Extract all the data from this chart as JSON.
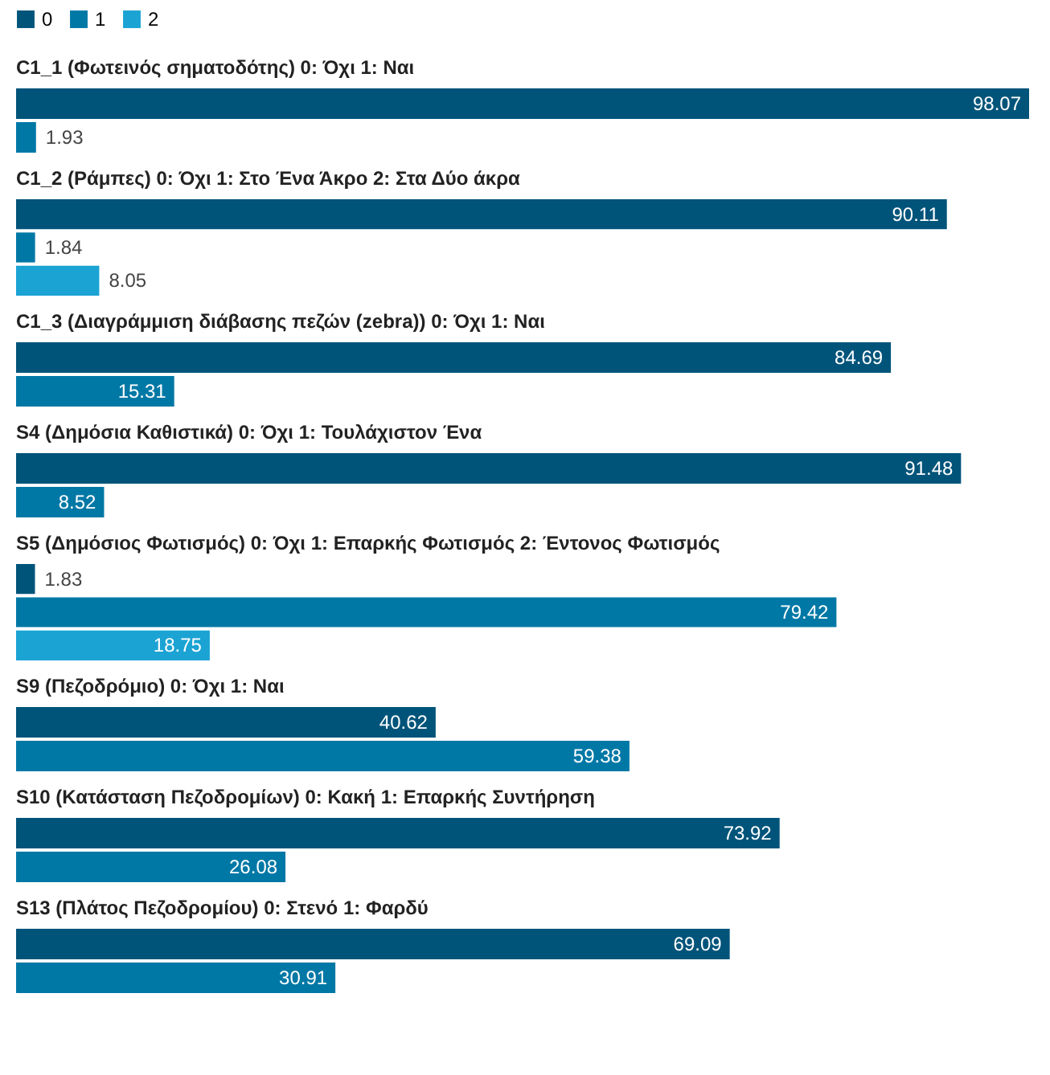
{
  "chart_data": {
    "type": "bar",
    "orientation": "horizontal",
    "data_labels": true,
    "legend": "top left",
    "categories": [
      "C1_1 (Φωτεινός σηματοδότης) 0: Όχι    1: Ναι",
      "C1_2 (Ράμπες) 0: Όχι    1: Στο Ένα Άκρο    2: Στα Δύο άκρα",
      "C1_3 (Διαγράμμιση διάβασης πεζών (zebra)) 0: Όχι    1: Ναι",
      "S4 (Δημόσια Καθιστικά) 0: Όχι    1: Τουλάχιστον Ένα",
      "S5 (Δημόσιος Φωτισμός) 0: Όχι    1: Επαρκής Φωτισμός    2: Έντονος Φωτισμός",
      "S9 (Πεζοδρόμιο) 0: Όχι    1: Ναι",
      "S10 (Κατάσταση Πεζοδρομίων) 0: Κακή    1: Επαρκής Συντήρηση",
      "S13 (Πλάτος Πεζοδρομίου) 0: Στενό    1: Φαρδύ"
    ],
    "series": [
      {
        "name": "0",
        "color": "#00547a",
        "values": [
          98.07,
          90.11,
          84.69,
          91.48,
          1.83,
          40.62,
          73.92,
          69.09
        ]
      },
      {
        "name": "1",
        "color": "#0078a6",
        "values": [
          1.93,
          1.84,
          15.31,
          8.52,
          79.42,
          59.38,
          26.08,
          30.91
        ]
      },
      {
        "name": "2",
        "color": "#1ba3d4",
        "values": [
          null,
          8.05,
          null,
          null,
          18.75,
          null,
          null,
          null
        ]
      }
    ]
  }
}
